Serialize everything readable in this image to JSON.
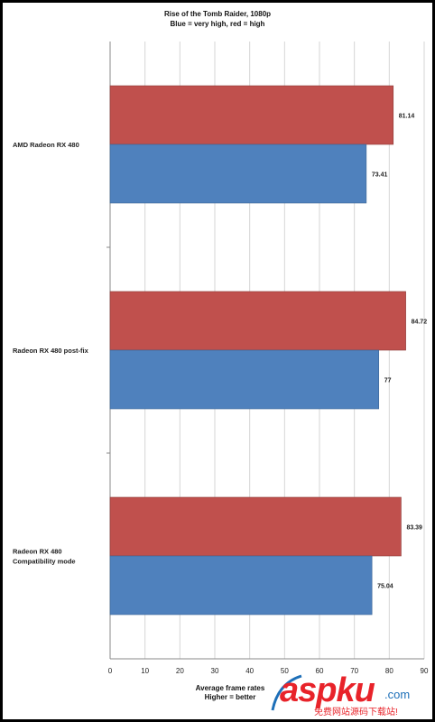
{
  "chart_data": {
    "type": "bar",
    "orientation": "horizontal",
    "title": "Rise of the Tomb Raider, 1080p",
    "subtitle": "Blue = very high, red = high",
    "xlabel": "Average frame rates",
    "xlabel_note": "Higher = better",
    "ylabel": "",
    "categories": [
      "AMD Radeon RX 480",
      "Radeon RX 480 post-fix",
      "Radeon RX 480 Compatibility mode"
    ],
    "series": [
      {
        "color": "#c0504d",
        "values": [
          81.14,
          84.72,
          83.39
        ]
      },
      {
        "color": "#4f81bd",
        "values": [
          73.41,
          77,
          75.04
        ]
      }
    ],
    "data_labels": {
      "red": [
        "81.14",
        "84.72",
        "83.39"
      ],
      "blue": [
        "73.41",
        "77",
        "75.04"
      ]
    },
    "xlim": [
      0,
      90
    ],
    "xticks": [
      "0",
      "10",
      "20",
      "30",
      "40",
      "50",
      "60",
      "70",
      "80",
      "90"
    ],
    "grid": true
  },
  "watermark": {
    "main": "aspku",
    "suffix": ".com",
    "sub": "免费网站源码下载站!"
  }
}
